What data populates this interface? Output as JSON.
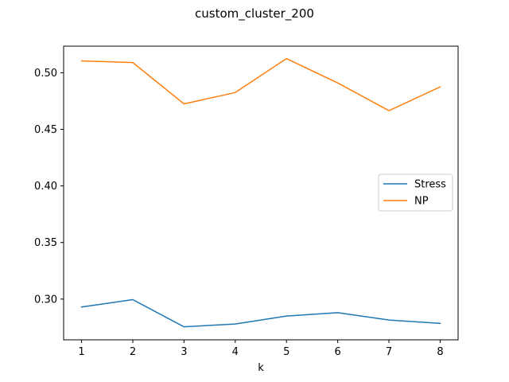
{
  "chart_data": {
    "type": "line",
    "title": "custom_cluster_200",
    "xlabel": "k",
    "ylabel": "",
    "x": [
      1,
      2,
      3,
      4,
      5,
      6,
      7,
      8
    ],
    "xticks": [
      1,
      2,
      3,
      4,
      5,
      6,
      7,
      8
    ],
    "yticks": [
      0.3,
      0.35,
      0.4,
      0.45,
      0.5
    ],
    "xlim": [
      0.65,
      8.35
    ],
    "ylim": [
      0.264,
      0.5235
    ],
    "grid": false,
    "legend_position": "center-right",
    "series": [
      {
        "name": "Stress",
        "color": "#1f77b4",
        "values": [
          0.293,
          0.2995,
          0.2755,
          0.278,
          0.285,
          0.288,
          0.2815,
          0.2785
        ]
      },
      {
        "name": "NP",
        "color": "#ff7f0e",
        "values": [
          0.5105,
          0.509,
          0.4725,
          0.4825,
          0.5125,
          0.491,
          0.4665,
          0.4875
        ]
      }
    ]
  }
}
